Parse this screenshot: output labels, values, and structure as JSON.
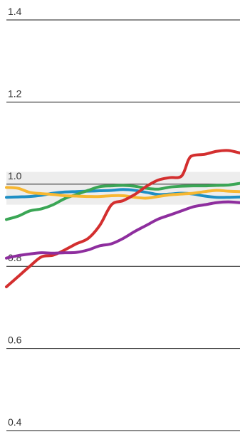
{
  "chart_data": {
    "type": "line",
    "title": "",
    "xlabel": "",
    "ylabel": "",
    "ylim": [
      0.4,
      1.4
    ],
    "yticks": [
      {
        "value": 1.4,
        "label": "1.4"
      },
      {
        "value": 1.2,
        "label": "1.2"
      },
      {
        "value": 1.0,
        "label": "1.0"
      },
      {
        "value": 0.8,
        "label": "0.8"
      },
      {
        "value": 0.6,
        "label": "0.6"
      },
      {
        "value": 0.4,
        "label": "0.4"
      }
    ],
    "grid": true,
    "reference_band": [
      0.95,
      1.03
    ],
    "xlim": [
      0,
      100
    ],
    "series": [
      {
        "color": "#1f8fc4",
        "x": [
          0,
          5,
          10,
          15,
          20,
          25,
          30,
          35,
          40,
          45,
          50,
          55,
          60,
          65,
          70,
          75,
          80,
          85,
          90,
          95,
          100
        ],
        "values": [
          0.968,
          0.969,
          0.97,
          0.973,
          0.978,
          0.981,
          0.982,
          0.983,
          0.984,
          0.985,
          0.987,
          0.985,
          0.98,
          0.975,
          0.976,
          0.978,
          0.976,
          0.971,
          0.968,
          0.968,
          0.969
        ]
      },
      {
        "color": "#3aa655",
        "x": [
          0,
          5,
          10,
          15,
          20,
          25,
          30,
          35,
          40,
          45,
          50,
          55,
          60,
          65,
          70,
          75,
          80,
          85,
          90,
          95,
          100
        ],
        "values": [
          0.914,
          0.922,
          0.935,
          0.94,
          0.95,
          0.965,
          0.975,
          0.985,
          0.994,
          0.996,
          0.997,
          0.995,
          0.99,
          0.988,
          0.993,
          0.995,
          0.996,
          0.996,
          0.997,
          0.998,
          1.002
        ]
      },
      {
        "color": "#f7b731",
        "x": [
          0,
          5,
          10,
          15,
          20,
          25,
          30,
          35,
          40,
          45,
          50,
          55,
          60,
          65,
          70,
          75,
          80,
          85,
          90,
          95,
          100
        ],
        "values": [
          0.992,
          0.99,
          0.98,
          0.977,
          0.975,
          0.972,
          0.971,
          0.97,
          0.97,
          0.972,
          0.972,
          0.968,
          0.966,
          0.97,
          0.974,
          0.976,
          0.978,
          0.982,
          0.985,
          0.983,
          0.982
        ]
      },
      {
        "color": "#d32f2f",
        "x": [
          0,
          5,
          10,
          15,
          20,
          25,
          30,
          35,
          40,
          45,
          50,
          55,
          60,
          65,
          70,
          75,
          78,
          80,
          85,
          90,
          95,
          100
        ],
        "values": [
          0.75,
          0.775,
          0.8,
          0.823,
          0.827,
          0.84,
          0.855,
          0.868,
          0.9,
          0.95,
          0.96,
          0.975,
          0.995,
          1.01,
          1.016,
          1.02,
          1.06,
          1.07,
          1.073,
          1.08,
          1.082,
          1.076
        ]
      },
      {
        "color": "#8e2e9e",
        "x": [
          0,
          5,
          10,
          15,
          20,
          25,
          30,
          35,
          40,
          45,
          50,
          55,
          60,
          65,
          70,
          75,
          80,
          85,
          90,
          95,
          100
        ],
        "values": [
          0.82,
          0.826,
          0.83,
          0.833,
          0.832,
          0.833,
          0.834,
          0.84,
          0.85,
          0.855,
          0.868,
          0.885,
          0.9,
          0.915,
          0.925,
          0.935,
          0.945,
          0.95,
          0.955,
          0.957,
          0.955
        ]
      }
    ]
  }
}
